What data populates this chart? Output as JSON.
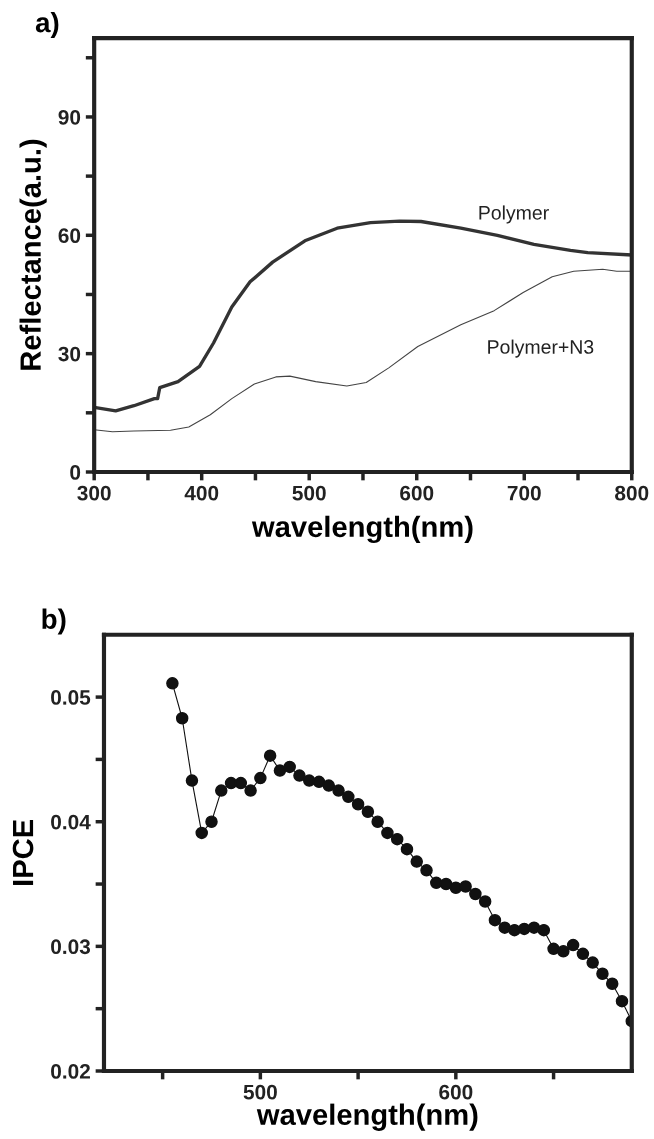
{
  "chart_data": [
    {
      "type": "line",
      "xlabel": "wavelength(nm)",
      "ylabel": "Reflectance(a.u.)",
      "annotations": [
        "a)"
      ],
      "xlim": [
        300,
        800
      ],
      "xticks": [
        300,
        {
          "value": 350,
          "label": null
        },
        400,
        {
          "value": 450,
          "label": null
        },
        500,
        {
          "value": 550,
          "label": null
        },
        600,
        {
          "value": 650,
          "label": null
        },
        700,
        {
          "value": 750,
          "label": null
        },
        800
      ],
      "ylim": [
        0,
        110
      ],
      "yticks": [
        0,
        {
          "value": 15,
          "label": null
        },
        30,
        {
          "value": 45,
          "label": null
        },
        60,
        {
          "value": 75,
          "label": null
        },
        90,
        {
          "value": 105,
          "label": null
        }
      ],
      "grid": false,
      "legend": false,
      "marker": "none",
      "line_style": "solid",
      "series": [
        {
          "name": "Polymer",
          "color": "#333333",
          "x": [
            300,
            320,
            337,
            356,
            359,
            361,
            378,
            398,
            411,
            428,
            445,
            466,
            496,
            526,
            557,
            584,
            604,
            641,
            675,
            709,
            743,
            759,
            800
          ],
          "values": [
            16.4,
            15.5,
            16.8,
            18.6,
            18.6,
            21.4,
            22.9,
            26.8,
            32.7,
            41.8,
            48.2,
            53.2,
            58.6,
            61.8,
            63.2,
            63.6,
            63.5,
            61.8,
            60.0,
            57.7,
            56.2,
            55.6,
            55.0
          ]
        },
        {
          "name": "Polymer+N3",
          "color": "#444444",
          "x": [
            300,
            317,
            337,
            371,
            388,
            408,
            428,
            449,
            469,
            482,
            506,
            535,
            553,
            574,
            601,
            641,
            672,
            699,
            726,
            746,
            773,
            786,
            800
          ],
          "values": [
            10.7,
            10.2,
            10.4,
            10.6,
            11.4,
            14.5,
            18.6,
            22.3,
            24.1,
            24.3,
            22.9,
            21.8,
            22.7,
            26.4,
            31.8,
            37.3,
            40.9,
            45.5,
            49.5,
            50.9,
            51.4,
            50.9,
            50.9
          ]
        }
      ]
    },
    {
      "type": "line",
      "xlabel": "wavelength(nm)",
      "ylabel": "IPCE",
      "annotations": [
        "b)"
      ],
      "xlim": [
        420,
        690
      ],
      "xticks": [
        {
          "value": 450,
          "label": null
        },
        500,
        {
          "value": 550,
          "label": null
        },
        600,
        {
          "value": 650,
          "label": null
        }
      ],
      "ylim": [
        0.02,
        0.055
      ],
      "yticks": [
        0.02,
        {
          "value": 0.025,
          "label": null
        },
        0.03,
        {
          "value": 0.035,
          "label": null
        },
        0.04,
        {
          "value": 0.045,
          "label": null
        },
        0.05
      ],
      "grid": false,
      "legend": false,
      "marker": "circle",
      "line_style": "solid",
      "series": [
        {
          "color": "#111111",
          "x": [
            455,
            460,
            465,
            470,
            475,
            480,
            485,
            490,
            495,
            500,
            505,
            510,
            515,
            520,
            525,
            530,
            535,
            540,
            545,
            550,
            555,
            560,
            565,
            570,
            575,
            580,
            585,
            590,
            595,
            600,
            605,
            610,
            615,
            620,
            625,
            630,
            635,
            640,
            645,
            650,
            655,
            660,
            665,
            670,
            675,
            680,
            685,
            690
          ],
          "values": [
            0.0511,
            0.0483,
            0.0433,
            0.0391,
            0.04,
            0.0425,
            0.0431,
            0.0431,
            0.0425,
            0.0435,
            0.0453,
            0.0441,
            0.0444,
            0.0437,
            0.0433,
            0.0432,
            0.0429,
            0.0425,
            0.042,
            0.0414,
            0.0408,
            0.04,
            0.0391,
            0.0386,
            0.0378,
            0.0368,
            0.0361,
            0.0351,
            0.035,
            0.0347,
            0.0348,
            0.0342,
            0.0336,
            0.0321,
            0.0315,
            0.0313,
            0.0314,
            0.0315,
            0.0313,
            0.0298,
            0.0296,
            0.0301,
            0.0294,
            0.0287,
            0.0278,
            0.027,
            0.0256,
            0.024
          ]
        }
      ]
    }
  ]
}
